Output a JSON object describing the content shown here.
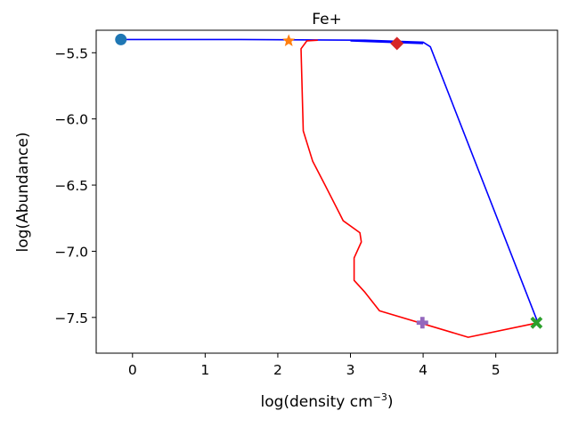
{
  "chart_data": {
    "type": "line",
    "title": "Fe+",
    "xlabel": {
      "text": "log(density cm",
      "sup": "−3",
      "suffix": ")"
    },
    "ylabel": "log(Abundance)",
    "xlim": [
      -0.5,
      5.85
    ],
    "ylim": [
      -7.77,
      -5.33
    ],
    "xticks": [
      0,
      1,
      2,
      3,
      4,
      5
    ],
    "yticks": [
      -5.5,
      -6.0,
      -6.5,
      -7.0,
      -7.5
    ],
    "xtick_labels": [
      "0",
      "1",
      "2",
      "3",
      "4",
      "5"
    ],
    "ytick_labels": [
      "−5.5",
      "−6.0",
      "−6.5",
      "−7.0",
      "−7.5"
    ],
    "grid": false,
    "series": [
      {
        "name": "blue-track",
        "color": "#0000ff",
        "points": [
          [
            -0.15,
            -5.4
          ],
          [
            1.5,
            -5.4
          ],
          [
            3.2,
            -5.405
          ],
          [
            4.0,
            -5.42
          ],
          [
            4.1,
            -5.455
          ],
          [
            5.58,
            -7.54
          ]
        ]
      },
      {
        "name": "blue-overlap",
        "color": "#0000ff",
        "points": [
          [
            3.0,
            -5.41
          ],
          [
            4.0,
            -5.43
          ]
        ]
      },
      {
        "name": "red-track",
        "color": "#ff0000",
        "points": [
          [
            2.55,
            -5.405
          ],
          [
            2.4,
            -5.41
          ],
          [
            2.32,
            -5.47
          ],
          [
            2.35,
            -6.09
          ],
          [
            2.48,
            -6.32
          ],
          [
            2.65,
            -6.5
          ],
          [
            2.9,
            -6.77
          ],
          [
            3.13,
            -6.86
          ],
          [
            3.15,
            -6.93
          ],
          [
            3.05,
            -7.05
          ],
          [
            3.05,
            -7.22
          ],
          [
            3.2,
            -7.31
          ],
          [
            3.4,
            -7.45
          ],
          [
            4.62,
            -7.65
          ],
          [
            5.58,
            -7.54
          ]
        ]
      }
    ],
    "markers": [
      {
        "name": "circle",
        "shape": "circle",
        "color": "#1f77b4",
        "x": -0.16,
        "y": -5.4
      },
      {
        "name": "star",
        "shape": "star",
        "color": "#ff7f0e",
        "x": 2.15,
        "y": -5.41
      },
      {
        "name": "diamond",
        "shape": "diamond",
        "color": "#d62728",
        "x": 3.64,
        "y": -5.43
      },
      {
        "name": "plus",
        "shape": "plus",
        "color": "#9467bd",
        "x": 3.99,
        "y": -7.54
      },
      {
        "name": "x",
        "shape": "x",
        "color": "#2ca02c",
        "x": 5.56,
        "y": -7.54
      }
    ]
  }
}
